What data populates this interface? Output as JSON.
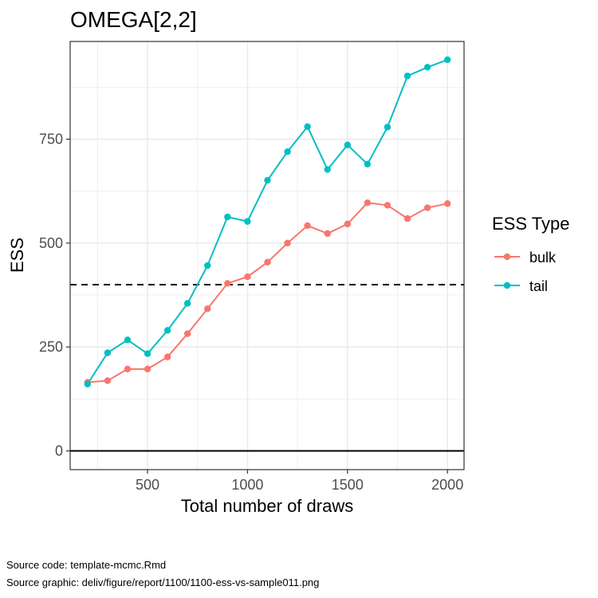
{
  "chart_data": {
    "type": "line",
    "title": "OMEGA[2,2]",
    "xlabel": "Total number of draws",
    "ylabel": "ESS",
    "xlim": [
      113,
      2083
    ],
    "ylim": [
      -45,
      985
    ],
    "x_ticks": [
      500,
      1000,
      1500,
      2000
    ],
    "y_ticks": [
      0,
      250,
      500,
      750
    ],
    "grid": true,
    "reference_lines": [
      {
        "y": 0,
        "style": "solid"
      },
      {
        "y": 400,
        "style": "dashed"
      }
    ],
    "legend": {
      "title": "ESS Type",
      "placement": "right"
    },
    "x": [
      200,
      300,
      400,
      500,
      600,
      700,
      800,
      900,
      1000,
      1100,
      1200,
      1300,
      1400,
      1500,
      1600,
      1700,
      1800,
      1900,
      2000
    ],
    "series": [
      {
        "name": "bulk",
        "color": "#F8766D",
        "values": [
          165,
          169,
          197,
          197,
          226,
          282,
          342,
          403,
          419,
          454,
          500,
          542,
          523,
          546,
          597,
          591,
          559,
          585,
          595
        ]
      },
      {
        "name": "tail",
        "color": "#00BFC4",
        "values": [
          161,
          236,
          267,
          234,
          290,
          355,
          446,
          563,
          552,
          651,
          720,
          780,
          677,
          736,
          690,
          779,
          902,
          923,
          941
        ]
      }
    ]
  },
  "captions": {
    "source_code": "Source code: template-mcmc.Rmd",
    "source_graphic": "Source graphic: deliv/figure/report/1100/1100-ess-vs-sample011.png"
  }
}
